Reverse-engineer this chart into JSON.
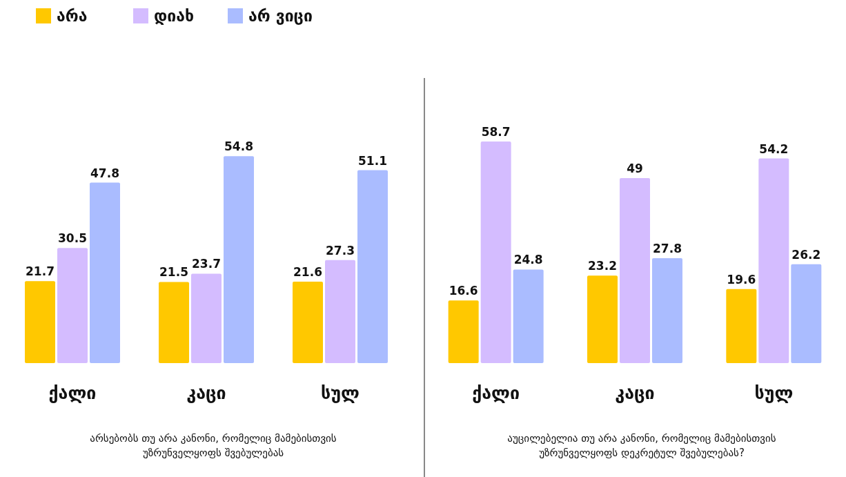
{
  "chart_data": [
    {
      "type": "bar",
      "xlabel": "არსებობს თუ არა კანონი, რომელიც მამებისთვის უზრუნველყოფს შვებულებას",
      "categories": [
        "ქალი",
        "კაცი",
        "სულ"
      ],
      "series": [
        {
          "name": "არა",
          "color": "#ffc800",
          "values": [
            21.7,
            21.5,
            21.6
          ]
        },
        {
          "name": "დიახ",
          "color": "#d4bcff",
          "values": [
            30.5,
            23.7,
            27.3
          ]
        },
        {
          "name": "არ ვიცი",
          "color": "#aabcff",
          "values": [
            47.8,
            54.8,
            51.1
          ]
        }
      ],
      "data_labels": true,
      "legend": "top left"
    },
    {
      "type": "bar",
      "xlabel": "აუცილებელია თუ არა კანონი, რომელიც მამებისთვის უზრუნველყოფს დეკრეტულ შვებულებას?",
      "categories": [
        "ქალი",
        "კაცი",
        "სულ"
      ],
      "series": [
        {
          "color": "#ffc800",
          "values": [
            16.6,
            23.2,
            19.6
          ]
        },
        {
          "color": "#d4bcff",
          "values": [
            58.7,
            49,
            54.2
          ]
        },
        {
          "color": "#aabcff",
          "values": [
            24.8,
            27.8,
            26.2
          ]
        }
      ],
      "data_labels": true
    }
  ]
}
